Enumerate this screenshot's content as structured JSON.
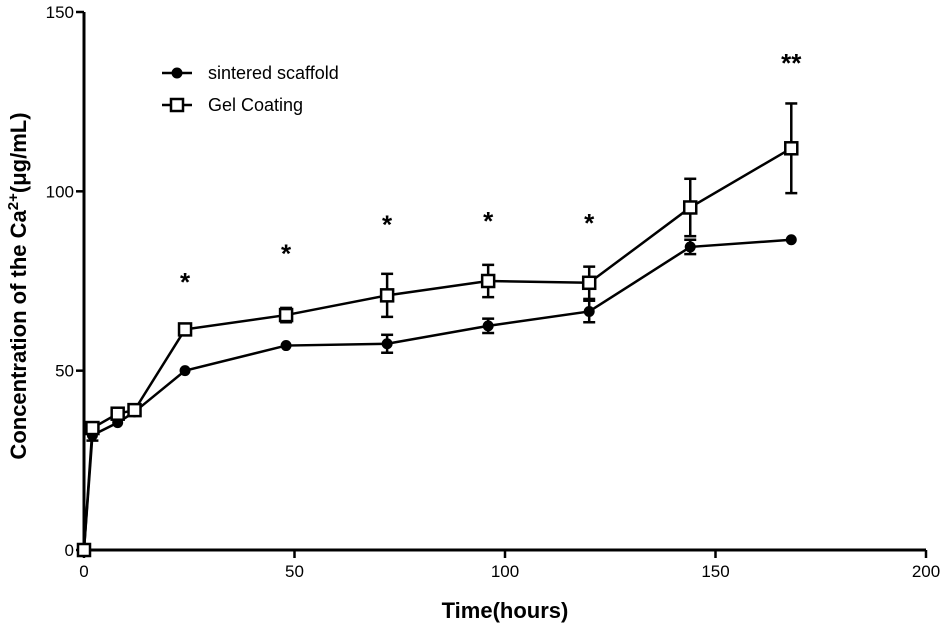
{
  "chart_data": {
    "type": "line",
    "xlabel": "Time(hours)",
    "ylabel_prefix": "Concentration of the Ca",
    "ylabel_sup": "2+",
    "ylabel_suffix": "(μg/mL)",
    "xlim": [
      0,
      200
    ],
    "ylim": [
      0,
      150
    ],
    "xticks": [
      0,
      50,
      100,
      150,
      200
    ],
    "yticks": [
      0,
      50,
      100,
      150
    ],
    "grid": false,
    "legend_position": "top-left",
    "series": [
      {
        "name": "sintered scaffold",
        "marker": "filled-circle",
        "x": [
          0,
          2,
          8,
          12,
          24,
          48,
          72,
          96,
          120,
          144,
          168
        ],
        "y": [
          0,
          32,
          35.5,
          38.5,
          50,
          57,
          57.5,
          62.5,
          66.5,
          84.5,
          86.5
        ],
        "error": [
          0,
          1.5,
          0,
          0,
          0,
          0,
          2.5,
          2,
          3,
          2,
          0
        ]
      },
      {
        "name": "Gel Coating",
        "marker": "open-square",
        "x": [
          0,
          2,
          8,
          12,
          24,
          48,
          72,
          96,
          120,
          144,
          168
        ],
        "y": [
          0,
          34,
          38,
          39,
          61.5,
          65.5,
          71,
          75,
          74.5,
          95.5,
          112
        ],
        "error": [
          0,
          0,
          0,
          0,
          0,
          2,
          6,
          4.5,
          4.5,
          8,
          12.5
        ]
      }
    ],
    "annotations": [
      {
        "text": "*",
        "x": 24,
        "y": 75
      },
      {
        "text": "*",
        "x": 48,
        "y": 83
      },
      {
        "text": "*",
        "x": 72,
        "y": 91
      },
      {
        "text": "*",
        "x": 96,
        "y": 92
      },
      {
        "text": "*",
        "x": 120,
        "y": 91.5
      },
      {
        "text": "**",
        "x": 168,
        "y": 136
      }
    ]
  }
}
